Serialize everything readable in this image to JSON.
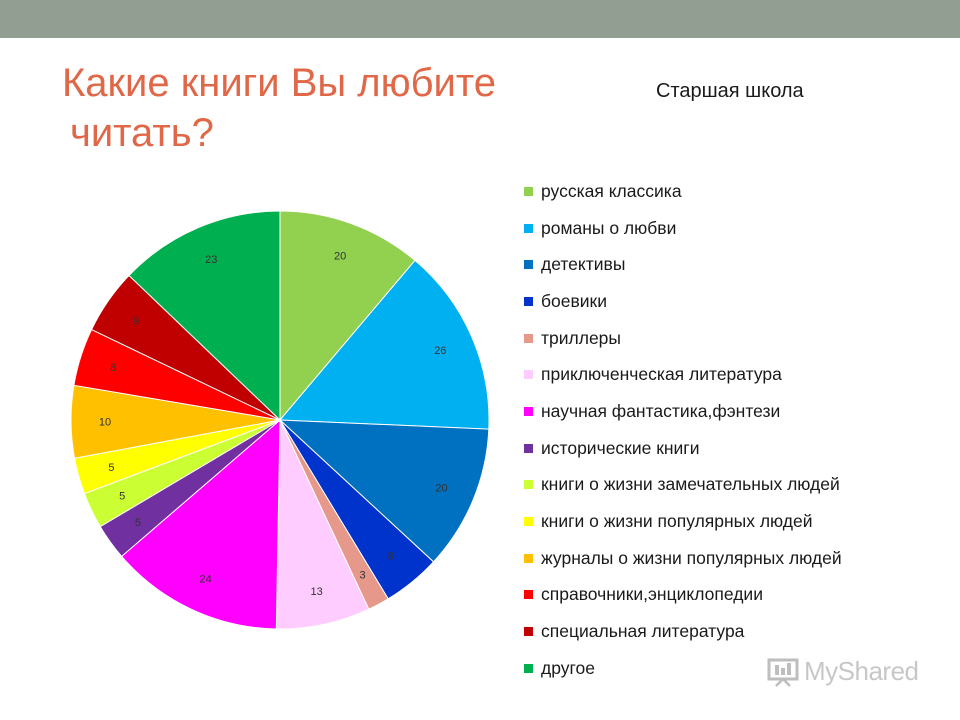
{
  "slide": {
    "title_line1": "Какие книги Вы любите",
    "title_line2": "читать?"
  },
  "watermark": {
    "text": "MyShared"
  },
  "chart_data": {
    "type": "pie",
    "title": "Старшая школа",
    "legend_position": "right",
    "start_angle_deg": 0,
    "direction": "clockwise",
    "slices": [
      {
        "label": "русская классика",
        "value": 20,
        "color": "#92d050"
      },
      {
        "label": "романы о любви",
        "value": 26,
        "color": "#00b0f0"
      },
      {
        "label": "детективы",
        "value": 20,
        "color": "#0070c0"
      },
      {
        "label": "боевики",
        "value": 8,
        "color": "#0033cc"
      },
      {
        "label": "триллеры",
        "value": 3,
        "color": "#e6988a"
      },
      {
        "label": "приключенческая литература",
        "value": 13,
        "color": "#ffccff"
      },
      {
        "label": "научная фантастика,фэнтези",
        "value": 24,
        "color": "#ff00ff"
      },
      {
        "label": "исторические книги",
        "value": 5,
        "color": "#7030a0"
      },
      {
        "label": "книги о жизни замечательных людей",
        "value": 5,
        "color": "#ccff33"
      },
      {
        "label": "книги о жизни популярных людей",
        "value": 5,
        "color": "#ffff00"
      },
      {
        "label": "журналы о жизни популярных людей",
        "value": 10,
        "color": "#ffc000"
      },
      {
        "label": "справочники,энциклопедии",
        "value": 8,
        "color": "#ff0000"
      },
      {
        "label": "специальная литература",
        "value": 9,
        "color": "#c00000"
      },
      {
        "label": "другое",
        "value": 23,
        "color": "#00b050"
      }
    ]
  }
}
